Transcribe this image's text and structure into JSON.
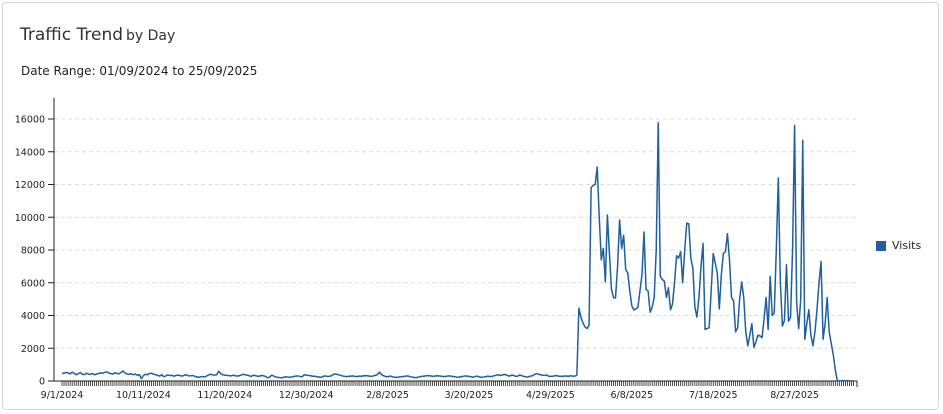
{
  "header": {
    "title": "Traffic Trend",
    "subtitle": "by Day",
    "date_range": "Date Range: 01/09/2024 to 25/09/2025"
  },
  "chart_data": {
    "type": "line",
    "title": "Traffic Trend by Day",
    "xlabel": "",
    "ylabel": "",
    "x_interval": "daily",
    "x_tick_labels": [
      "9/1/2024",
      "10/11/2024",
      "11/20/2024",
      "12/30/2024",
      "2/8/2025",
      "3/20/2025",
      "4/29/2025",
      "6/8/2025",
      "7/18/2025",
      "8/27/2025"
    ],
    "y_ticks": [
      0,
      2000,
      4000,
      6000,
      8000,
      10000,
      12000,
      14000,
      16000
    ],
    "y_tick_labels": [
      "0",
      "2000",
      "4000",
      "6000",
      "8000",
      "10000",
      "12000",
      "14000",
      "16000"
    ],
    "ylim": [
      0,
      17300
    ],
    "grid": "horizontal dashed",
    "legend_position": "right",
    "series": [
      {
        "name": "Visits",
        "color": "#1f5f9c",
        "values": [
          450,
          480,
          520,
          500,
          430,
          540,
          470,
          380,
          450,
          520,
          410,
          390,
          470,
          430,
          400,
          460,
          380,
          420,
          450,
          500,
          470,
          530,
          560,
          480,
          450,
          420,
          500,
          460,
          440,
          520,
          610,
          480,
          430,
          400,
          450,
          380,
          420,
          350,
          390,
          150,
          330,
          410,
          380,
          460,
          470,
          420,
          380,
          340,
          300,
          390,
          260,
          310,
          380,
          330,
          350,
          290,
          340,
          360,
          330,
          300,
          350,
          380,
          320,
          310,
          340,
          300,
          260,
          220,
          250,
          280,
          240,
          300,
          360,
          420,
          370,
          360,
          380,
          600,
          450,
          380,
          360,
          340,
          330,
          310,
          350,
          330,
          300,
          320,
          360,
          410,
          380,
          360,
          320,
          280,
          350,
          330,
          300,
          290,
          340,
          320,
          280,
          200,
          230,
          360,
          300,
          250,
          220,
          210,
          190,
          230,
          260,
          240,
          220,
          250,
          280,
          300,
          310,
          280,
          250,
          380,
          360,
          340,
          330,
          290,
          300,
          270,
          250,
          220,
          260,
          310,
          290,
          280,
          300,
          370,
          440,
          410,
          380,
          340,
          300,
          280,
          270,
          290,
          300,
          310,
          280,
          270,
          300,
          290,
          310,
          330,
          320,
          300,
          280,
          310,
          350,
          390,
          540,
          400,
          320,
          280,
          250,
          300,
          280,
          240,
          230,
          220,
          250,
          260,
          280,
          300,
          310,
          260,
          240,
          220,
          200,
          240,
          260,
          290,
          300,
          320,
          330,
          310,
          290,
          300,
          320,
          310,
          300,
          280,
          270,
          290,
          310,
          300,
          280,
          260,
          240,
          230,
          260,
          280,
          310,
          300,
          280,
          260,
          230,
          270,
          300,
          250,
          220,
          240,
          260,
          290,
          280,
          270,
          310,
          340,
          380,
          360,
          350,
          400,
          390,
          330,
          300,
          360,
          340,
          280,
          300,
          370,
          320,
          280,
          250,
          240,
          300,
          310,
          380,
          460,
          420,
          390,
          360,
          340,
          370,
          300,
          280,
          290,
          310,
          330,
          300,
          290,
          280,
          310,
          300,
          290,
          320,
          300,
          300,
          350,
          4450,
          3900,
          3550,
          3300,
          3200,
          3400,
          11800,
          11950,
          12000,
          13070,
          10000,
          7400,
          8100,
          6050,
          10140,
          7800,
          5600,
          5100,
          5070,
          7000,
          9830,
          8100,
          8900,
          6800,
          6600,
          5500,
          4600,
          4340,
          4400,
          4500,
          5500,
          6500,
          9100,
          5600,
          5500,
          4200,
          4500,
          5100,
          8000,
          15770,
          6400,
          6200,
          6100,
          5100,
          5700,
          4340,
          4700,
          6000,
          7650,
          7500,
          7900,
          6000,
          8000,
          9640,
          9600,
          7500,
          6900,
          4500,
          3900,
          5100,
          7000,
          8400,
          3150,
          3200,
          3250,
          5500,
          7780,
          7200,
          6600,
          4400,
          6500,
          7800,
          7900,
          9000,
          7400,
          5100,
          4900,
          3000,
          3250,
          5000,
          6050,
          5100,
          3000,
          2150,
          2800,
          3500,
          2050,
          2400,
          2800,
          2750,
          2650,
          3800,
          5100,
          3150,
          6400,
          4000,
          4150,
          8000,
          12400,
          6000,
          3350,
          3700,
          7100,
          3650,
          3900,
          8000,
          15600,
          4800,
          3200,
          5000,
          14700,
          2550,
          3500,
          4350,
          2800,
          2150,
          3000,
          4350,
          6000,
          7300,
          2550,
          3500,
          5100,
          3000,
          2300,
          1600,
          700,
          0,
          20,
          10,
          30,
          0,
          20,
          10,
          0,
          0
        ]
      }
    ]
  }
}
